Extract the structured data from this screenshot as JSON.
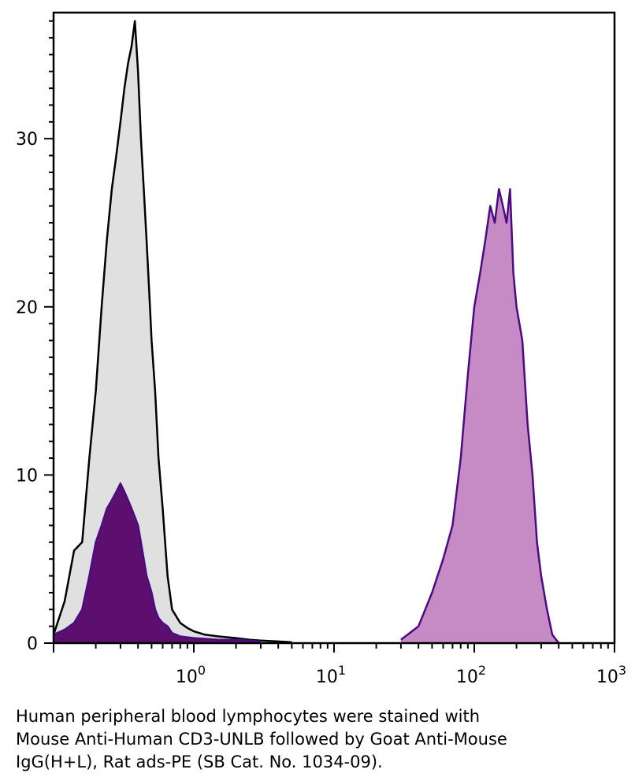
{
  "chart_data": {
    "type": "area",
    "title": "",
    "xlabel": "",
    "ylabel": "",
    "x_scale": "log",
    "xlim": [
      0.1,
      1000
    ],
    "ylim": [
      0,
      37.5
    ],
    "grid": false,
    "x_ticks": [
      {
        "value": 1,
        "base": "10",
        "exp": "0"
      },
      {
        "value": 10,
        "base": "10",
        "exp": "1"
      },
      {
        "value": 100,
        "base": "10",
        "exp": "2"
      },
      {
        "value": 1000,
        "base": "10",
        "exp": "3"
      }
    ],
    "y_ticks": [
      {
        "value": 0,
        "label": "0"
      },
      {
        "value": 10,
        "label": "10"
      },
      {
        "value": 20,
        "label": "20"
      },
      {
        "value": 30,
        "label": "30"
      }
    ],
    "series": [
      {
        "fill": "#e0e0e0",
        "stroke": "#000000",
        "x": [
          0.1,
          0.12,
          0.14,
          0.16,
          0.18,
          0.2,
          0.22,
          0.24,
          0.26,
          0.28,
          0.3,
          0.32,
          0.34,
          0.36,
          0.38,
          0.4,
          0.42,
          0.44,
          0.46,
          0.48,
          0.5,
          0.53,
          0.56,
          0.6,
          0.65,
          0.7,
          0.8,
          0.9,
          1.0,
          1.2,
          1.5,
          2.0,
          2.5,
          3.0,
          4.0,
          5.0
        ],
        "y": [
          0.5,
          2.5,
          5.5,
          6.0,
          11.0,
          15.0,
          20.0,
          24.0,
          27.0,
          29.0,
          31.0,
          33.0,
          34.5,
          35.5,
          37.0,
          34.0,
          30.0,
          27.0,
          24.0,
          21.0,
          18.0,
          15.0,
          11.0,
          8.0,
          4.0,
          2.0,
          1.2,
          0.9,
          0.7,
          0.5,
          0.4,
          0.3,
          0.2,
          0.15,
          0.1,
          0.05
        ]
      },
      {
        "fill": "#5c0f6f",
        "stroke": "#4b0c82",
        "x": [
          0.1,
          0.12,
          0.14,
          0.16,
          0.18,
          0.2,
          0.22,
          0.24,
          0.26,
          0.28,
          0.3,
          0.32,
          0.34,
          0.36,
          0.38,
          0.4,
          0.42,
          0.44,
          0.46,
          0.48,
          0.5,
          0.53,
          0.56,
          0.6,
          0.65,
          0.7,
          0.8,
          1.0,
          1.5,
          2.0,
          3.0
        ],
        "y": [
          0.5,
          0.8,
          1.2,
          2.0,
          4.0,
          6.0,
          7.0,
          8.0,
          8.5,
          9.0,
          9.5,
          9.0,
          8.5,
          8.0,
          7.5,
          7.0,
          6.0,
          5.0,
          4.0,
          3.5,
          3.0,
          2.0,
          1.5,
          1.2,
          1.0,
          0.6,
          0.4,
          0.3,
          0.2,
          0.2,
          0.1
        ]
      },
      {
        "fill": "#c68ac4",
        "stroke": "#4b0c82",
        "x": [
          30,
          40,
          50,
          60,
          70,
          80,
          90,
          100,
          110,
          120,
          130,
          140,
          150,
          160,
          170,
          180,
          190,
          200,
          220,
          240,
          260,
          280,
          300,
          330,
          360,
          400
        ],
        "y": [
          0.2,
          1.0,
          3.0,
          5.0,
          7.0,
          11.0,
          16.0,
          20.0,
          22.0,
          24.0,
          26.0,
          25.0,
          27.0,
          26.0,
          25.0,
          27.0,
          22.0,
          20.0,
          18.0,
          13.0,
          10.0,
          6.0,
          4.0,
          2.0,
          0.5,
          0.0
        ]
      }
    ]
  },
  "caption": {
    "line1": "Human peripheral blood lymphocytes were stained with",
    "line2": "Mouse Anti-Human CD3-UNLB followed by Goat Anti-Mouse",
    "line3": "IgG(H+L), Rat ads-PE (SB Cat. No. 1034-09)."
  }
}
